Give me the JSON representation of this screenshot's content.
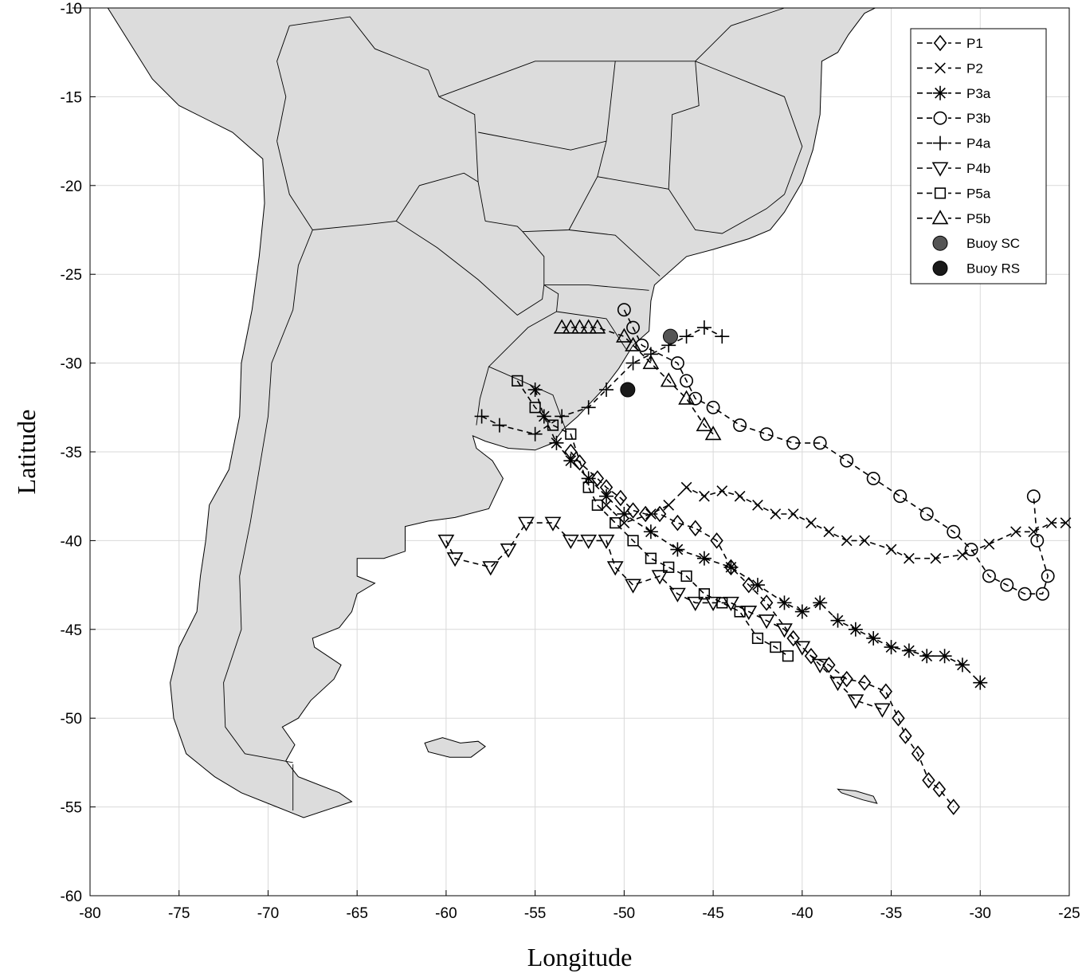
{
  "chart_data": {
    "type": "scatter",
    "xlabel": "Longitude",
    "ylabel": "Latitude",
    "xlim": [
      -80,
      -25
    ],
    "ylim": [
      -60,
      -10
    ],
    "xticks": [
      -80,
      -75,
      -70,
      -65,
      -60,
      -55,
      -50,
      -45,
      -40,
      -35,
      -30,
      -25
    ],
    "yticks": [
      -60,
      -55,
      -50,
      -45,
      -40,
      -35,
      -30,
      -25,
      -20,
      -15,
      -10
    ],
    "grid": true,
    "legend_position": "top-right",
    "series": [
      {
        "name": "P1",
        "marker": "diamond",
        "x": [
          -53.0,
          -52.5,
          -51.5,
          -51.0,
          -50.2,
          -49.5,
          -48.8,
          -48.0,
          -47.0,
          -46.0,
          -44.8,
          -44.0,
          -43.0,
          -42.0,
          -40.5,
          -39.5,
          -38.5,
          -37.5,
          -36.5,
          -35.3,
          -34.6,
          -34.2,
          -33.5,
          -32.9,
          -32.3,
          -31.5
        ],
        "y": [
          -35.0,
          -35.6,
          -36.5,
          -37.0,
          -37.6,
          -38.3,
          -38.5,
          -38.5,
          -39.0,
          -39.3,
          -40.0,
          -41.5,
          -42.5,
          -43.5,
          -45.5,
          -46.5,
          -47.0,
          -47.8,
          -48.0,
          -48.5,
          -50.0,
          -51.0,
          -52.0,
          -53.5,
          -54.0,
          -55.0
        ]
      },
      {
        "name": "P2",
        "marker": "x",
        "x": [
          -51.0,
          -50.0,
          -48.5,
          -47.5,
          -46.5,
          -45.5,
          -44.5,
          -43.5,
          -42.5,
          -41.5,
          -40.5,
          -39.5,
          -38.5,
          -37.5,
          -36.5,
          -35.0,
          -34.0,
          -32.5,
          -31.0,
          -29.5,
          -28.0,
          -27.0,
          -26.0,
          -25.2
        ],
        "y": [
          -38.0,
          -39.0,
          -38.5,
          -38.0,
          -37.0,
          -37.5,
          -37.2,
          -37.5,
          -38.0,
          -38.5,
          -38.5,
          -39.0,
          -39.5,
          -40.0,
          -40.0,
          -40.5,
          -41.0,
          -41.0,
          -40.8,
          -40.2,
          -39.5,
          -39.5,
          -39.0,
          -39.0
        ]
      },
      {
        "name": "P3a",
        "marker": "asterisk",
        "x": [
          -55.0,
          -54.5,
          -53.8,
          -53.0,
          -52.0,
          -51.0,
          -50.0,
          -48.5,
          -47.0,
          -45.5,
          -44.0,
          -42.5,
          -41.0,
          -40.0,
          -39.0,
          -38.0,
          -37.0,
          -36.0,
          -35.0,
          -34.0,
          -33.0,
          -32.0,
          -31.0,
          -30.0
        ],
        "y": [
          -31.5,
          -33.0,
          -34.5,
          -35.5,
          -36.5,
          -37.5,
          -38.5,
          -39.5,
          -40.5,
          -41.0,
          -41.5,
          -42.5,
          -43.5,
          -44.0,
          -43.5,
          -44.5,
          -45.0,
          -45.5,
          -46.0,
          -46.2,
          -46.5,
          -46.5,
          -47.0,
          -48.0
        ]
      },
      {
        "name": "P3b",
        "marker": "circle",
        "x": [
          -50.0,
          -49.5,
          -49.0,
          -47.0,
          -46.5,
          -46.0,
          -45.0,
          -43.5,
          -42.0,
          -40.5,
          -39.0,
          -37.5,
          -36.0,
          -34.5,
          -33.0,
          -31.5,
          -30.5,
          -29.5,
          -28.5,
          -27.5,
          -26.5,
          -26.2,
          -26.8,
          -27.0
        ],
        "y": [
          -27.0,
          -28.0,
          -29.0,
          -30.0,
          -31.0,
          -32.0,
          -32.5,
          -33.5,
          -34.0,
          -34.5,
          -34.5,
          -35.5,
          -36.5,
          -37.5,
          -38.5,
          -39.5,
          -40.5,
          -42.0,
          -42.5,
          -43.0,
          -43.0,
          -42.0,
          -40.0,
          -37.5
        ]
      },
      {
        "name": "P4a",
        "marker": "plus",
        "x": [
          -58.0,
          -57.0,
          -55.0,
          -53.5,
          -52.0,
          -51.0,
          -49.5,
          -48.5,
          -47.5,
          -46.5,
          -45.5,
          -44.5
        ],
        "y": [
          -33.0,
          -33.5,
          -34.0,
          -33.0,
          -32.5,
          -31.5,
          -30.0,
          -29.5,
          -29.0,
          -28.5,
          -28.0,
          -28.5
        ]
      },
      {
        "name": "P4b",
        "marker": "triangle-down",
        "x": [
          -60.0,
          -59.5,
          -57.5,
          -56.5,
          -55.5,
          -54.0,
          -53.0,
          -52.0,
          -51.0,
          -50.5,
          -49.5,
          -48.0,
          -47.0,
          -46.0,
          -45.0,
          -44.0,
          -43.0,
          -42.0,
          -41.0,
          -40.0,
          -39.0,
          -38.0,
          -37.0,
          -35.5
        ],
        "y": [
          -40.0,
          -41.0,
          -41.5,
          -40.5,
          -39.0,
          -39.0,
          -40.0,
          -40.0,
          -40.0,
          -41.5,
          -42.5,
          -42.0,
          -43.0,
          -43.5,
          -43.5,
          -43.5,
          -44.0,
          -44.5,
          -45.0,
          -46.0,
          -47.0,
          -48.0,
          -49.0,
          -49.5
        ]
      },
      {
        "name": "P5a",
        "marker": "square",
        "x": [
          -56.0,
          -55.0,
          -54.0,
          -53.0,
          -52.0,
          -51.5,
          -50.5,
          -49.5,
          -48.5,
          -47.5,
          -46.5,
          -45.5,
          -44.5,
          -43.5,
          -42.5,
          -41.5,
          -40.8
        ],
        "y": [
          -31.0,
          -32.5,
          -33.5,
          -34.0,
          -37.0,
          -38.0,
          -39.0,
          -40.0,
          -41.0,
          -41.5,
          -42.0,
          -43.0,
          -43.5,
          -44.0,
          -45.5,
          -46.0,
          -46.5
        ]
      },
      {
        "name": "P5b",
        "marker": "triangle-up",
        "x": [
          -53.5,
          -53.0,
          -52.5,
          -52.0,
          -51.5,
          -50.0,
          -49.5,
          -48.5,
          -47.5,
          -46.5,
          -45.5,
          -45.0
        ],
        "y": [
          -28.0,
          -28.0,
          -28.0,
          -28.0,
          -28.0,
          -28.5,
          -29.0,
          -30.0,
          -31.0,
          -32.0,
          -33.5,
          -34.0
        ]
      }
    ],
    "points": [
      {
        "name": "Buoy SC",
        "x": -47.4,
        "y": -28.5,
        "color": "#555555"
      },
      {
        "name": "Buoy RS",
        "x": -49.8,
        "y": -31.5,
        "color": "#1a1a1a"
      }
    ]
  },
  "map": {
    "land_color": "#dcdcdc",
    "coastline_color": "#000000"
  }
}
